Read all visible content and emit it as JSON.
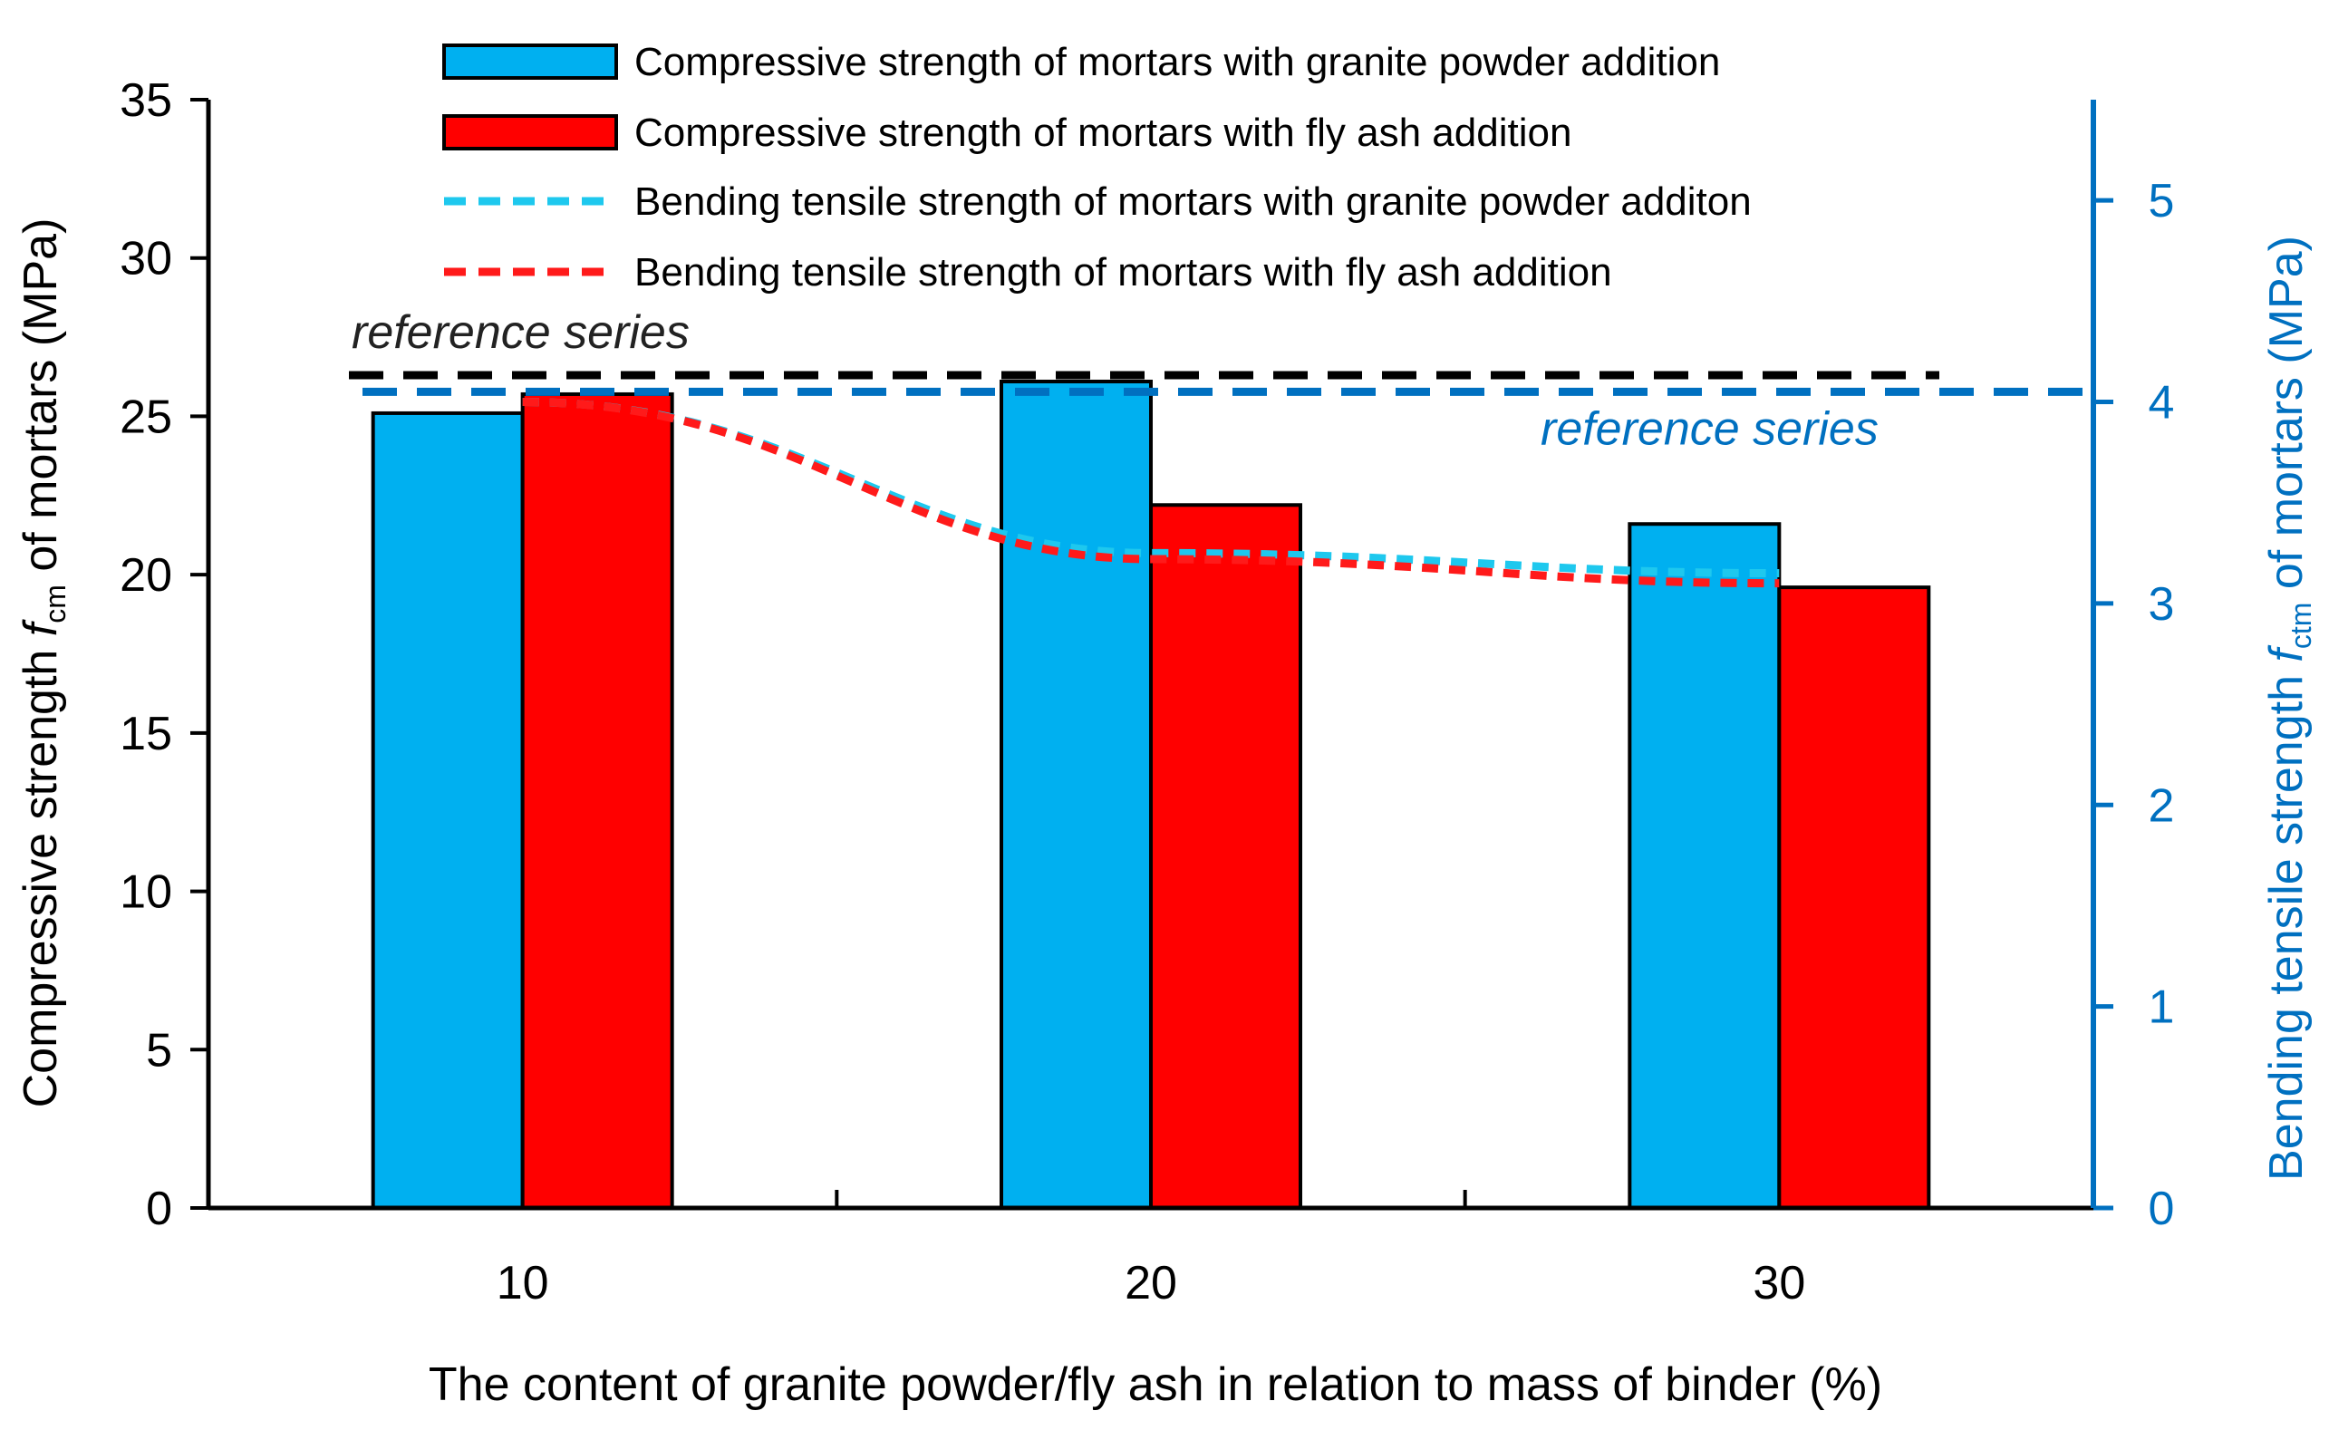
{
  "chart_data": {
    "type": "bar",
    "categories": [
      "10",
      "20",
      "30"
    ],
    "xlabel": "The content of granite powder/fly ash in relation to mass of binder (%)",
    "ylabel_left": {
      "prefix": "Compressive strength ",
      "symbol": "f",
      "subscript": "cm",
      "suffix": " of mortars (MPa)"
    },
    "ylabel_right": {
      "prefix": "Bending tensile strength ",
      "symbol": "f",
      "subscript": "ctm",
      "suffix": " of mortars (MPa)"
    },
    "ylim_left": [
      0,
      35
    ],
    "yticks_left": [
      0,
      5,
      10,
      15,
      20,
      25,
      30,
      35
    ],
    "ylim_right": [
      0,
      5.5
    ],
    "yticks_right": [
      0,
      1,
      2,
      3,
      4,
      5
    ],
    "bar_series": [
      {
        "name": "Compressive strength of mortars with granite powder addition",
        "color": "#00b0f0",
        "values": [
          25.1,
          26.1,
          21.6
        ]
      },
      {
        "name": "Compressive strength of mortars with fly ash addition",
        "color": "#ff0000",
        "values": [
          25.7,
          22.2,
          19.6
        ]
      }
    ],
    "line_series": [
      {
        "name": "Bending tensile strength of mortars with granite powder additon",
        "color": "#1ec8ee",
        "values": [
          4.0,
          3.25,
          3.15
        ]
      },
      {
        "name": "Bending tensile strength of mortars with fly ash addition",
        "color": "#ff1a1a",
        "values": [
          4.0,
          3.22,
          3.1
        ]
      }
    ],
    "reference_lines": [
      {
        "label": "reference series",
        "axis": "left",
        "value": 26.3,
        "color": "#000000"
      },
      {
        "label": "reference series",
        "axis": "right",
        "value": 4.05,
        "color": "#0070c0"
      }
    ],
    "right_axis_color": "#0070c0",
    "grid": false,
    "legend_position": "top-center"
  }
}
